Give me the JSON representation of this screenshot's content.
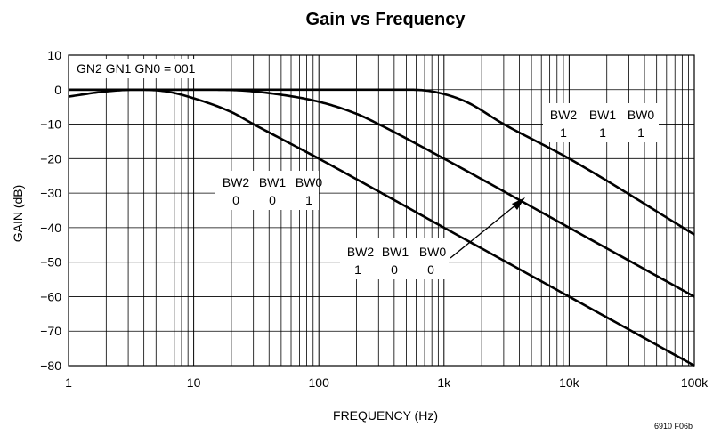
{
  "chart_data": {
    "type": "line",
    "title": "Gain vs Frequency",
    "xlabel": "FREQUENCY (Hz)",
    "ylabel": "GAIN (dB)",
    "x_scale": "log",
    "xlim": [
      1,
      100000
    ],
    "ylim": [
      -80,
      10
    ],
    "x_ticks": [
      {
        "value": 1,
        "label": "1"
      },
      {
        "value": 10,
        "label": "10"
      },
      {
        "value": 100,
        "label": "100"
      },
      {
        "value": 1000,
        "label": "1k"
      },
      {
        "value": 10000,
        "label": "10k"
      },
      {
        "value": 100000,
        "label": "100k"
      }
    ],
    "y_ticks": [
      {
        "value": 10,
        "label": "10"
      },
      {
        "value": 0,
        "label": "0"
      },
      {
        "value": -10,
        "label": "−10"
      },
      {
        "value": -20,
        "label": "−20"
      },
      {
        "value": -30,
        "label": "−30"
      },
      {
        "value": -40,
        "label": "−40"
      },
      {
        "value": -50,
        "label": "−50"
      },
      {
        "value": -60,
        "label": "−60"
      },
      {
        "value": -70,
        "label": "−70"
      },
      {
        "value": -80,
        "label": "−80"
      }
    ],
    "grid": true,
    "series": [
      {
        "x": [
          1,
          2,
          3.5,
          6,
          10,
          20,
          30,
          100,
          300,
          1000,
          10000,
          100000
        ],
        "y": [
          -2,
          -0.5,
          0,
          -0.5,
          -2.5,
          -6.5,
          -10,
          -20,
          -29.5,
          -40,
          -60,
          -80
        ]
      },
      {
        "x": [
          1,
          10,
          20,
          40,
          100,
          200,
          300,
          1000,
          10000,
          100000
        ],
        "y": [
          0,
          0,
          -0.1,
          -1,
          -3.5,
          -7,
          -10,
          -20,
          -40,
          -60
        ]
      },
      {
        "x": [
          1,
          10,
          100,
          500,
          800,
          1500,
          3000,
          10000,
          100000
        ],
        "y": [
          0,
          0,
          0,
          0,
          -0.5,
          -3.5,
          -10,
          -20,
          -42
        ]
      }
    ],
    "annotations": {
      "gain_setting": "GN2 GN1 GN0 = 001",
      "bw_001": {
        "names": [
          "BW2",
          "BW1",
          "BW0"
        ],
        "bits": [
          "0",
          "0",
          "1"
        ]
      },
      "bw_100": {
        "names": [
          "BW2",
          "BW1",
          "BW0"
        ],
        "bits": [
          "1",
          "0",
          "0"
        ]
      },
      "bw_111": {
        "names": [
          "BW2",
          "BW1",
          "BW0"
        ],
        "bits": [
          "1",
          "1",
          "1"
        ]
      }
    },
    "line_color": "#000000"
  },
  "figure_id": "6910 F06b"
}
